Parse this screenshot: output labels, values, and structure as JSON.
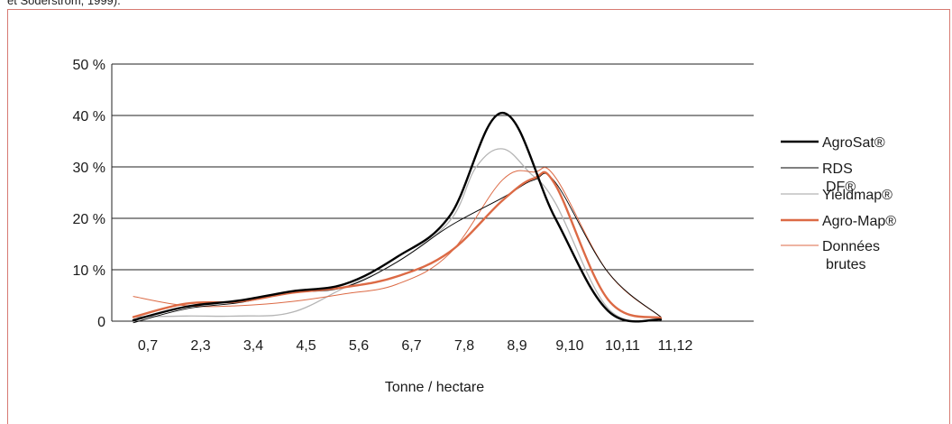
{
  "caption": "et Söderström, 1999).",
  "chart_data": {
    "type": "line",
    "title": "",
    "xlabel": "Tonne / hectare",
    "ylabel": "",
    "categories": [
      "0,7",
      "2,3",
      "3,4",
      "4,5",
      "5,6",
      "6,7",
      "7,8",
      "8,9",
      "9,10",
      "10,11",
      "11,12"
    ],
    "y_ticks": [
      "0",
      "10 %",
      "20 %",
      "30 %",
      "40 %",
      "50 %"
    ],
    "ylim": [
      0,
      50
    ],
    "grid": "horizontal",
    "legend_position": "right",
    "series": [
      {
        "name": "AgroSat®",
        "color": "#000000",
        "width": 2.4,
        "points": [
          [
            0,
            0.2
          ],
          [
            1,
            2.8
          ],
          [
            2,
            4
          ],
          [
            3,
            5.8
          ],
          [
            4,
            7.2
          ],
          [
            5,
            12.5
          ],
          [
            6,
            20.5
          ],
          [
            7,
            40.5
          ],
          [
            8,
            20
          ],
          [
            9,
            2
          ],
          [
            10,
            0.3
          ]
        ]
      },
      {
        "name": "RDS DF®",
        "color": "#000000",
        "width": 0.9,
        "points": [
          [
            0,
            -0.3
          ],
          [
            1,
            2.4
          ],
          [
            2,
            3.6
          ],
          [
            3,
            5.5
          ],
          [
            4,
            6.6
          ],
          [
            5,
            11.5
          ],
          [
            6,
            18.5
          ],
          [
            7,
            24
          ],
          [
            7.6,
            27.5
          ],
          [
            8,
            27
          ],
          [
            9,
            9.5
          ],
          [
            10,
            0.8
          ]
        ]
      },
      {
        "name": "Yieldmap®",
        "color": "#b5b5b5",
        "width": 1.3,
        "points": [
          [
            0,
            0.8
          ],
          [
            1,
            1
          ],
          [
            2,
            1
          ],
          [
            3,
            1.7
          ],
          [
            4,
            6.5
          ],
          [
            5,
            11.5
          ],
          [
            6,
            19.5
          ],
          [
            6.5,
            30
          ],
          [
            7,
            33.5
          ],
          [
            7.5,
            29
          ],
          [
            8,
            23
          ],
          [
            9,
            2.5
          ],
          [
            10,
            0.3
          ]
        ]
      },
      {
        "name": "Agro-Map®",
        "color": "#dc6a45",
        "width": 2.4,
        "points": [
          [
            0,
            0.8
          ],
          [
            1,
            3.4
          ],
          [
            2,
            3.8
          ],
          [
            3,
            5.5
          ],
          [
            4,
            6.6
          ],
          [
            5,
            8.7
          ],
          [
            6,
            13.5
          ],
          [
            7,
            23.5
          ],
          [
            7.6,
            27.8
          ],
          [
            8,
            26.5
          ],
          [
            9,
            4.2
          ],
          [
            10,
            0.6
          ]
        ]
      },
      {
        "name": "Données brutes",
        "color": "#dc6a45",
        "width": 1.0,
        "points": [
          [
            0,
            4.8
          ],
          [
            1,
            3
          ],
          [
            2,
            3
          ],
          [
            3,
            3.8
          ],
          [
            4,
            5.3
          ],
          [
            5,
            7.2
          ],
          [
            6,
            13.2
          ],
          [
            7,
            27.5
          ],
          [
            7.6,
            29
          ],
          [
            8,
            28
          ],
          [
            9,
            9.5
          ],
          [
            10,
            0.8
          ]
        ]
      }
    ]
  }
}
